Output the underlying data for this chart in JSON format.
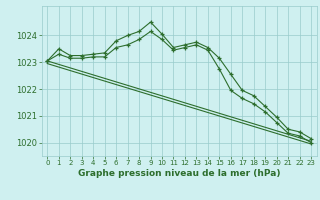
{
  "title": "Graphe pression niveau de la mer (hPa)",
  "bg_color": "#cff0f0",
  "grid_color": "#99cccc",
  "line_color": "#2d6e2d",
  "xlim": [
    -0.5,
    23.5
  ],
  "ylim": [
    1019.5,
    1025.1
  ],
  "yticks": [
    1020,
    1021,
    1022,
    1023,
    1024
  ],
  "xticks": [
    0,
    1,
    2,
    3,
    4,
    5,
    6,
    7,
    8,
    9,
    10,
    11,
    12,
    13,
    14,
    15,
    16,
    17,
    18,
    19,
    20,
    21,
    22,
    23
  ],
  "series": [
    {
      "x": [
        0,
        1,
        2,
        3,
        4,
        5,
        6,
        7,
        8,
        9,
        10,
        11,
        12,
        13,
        14,
        15,
        16,
        17,
        18,
        19,
        20,
        21,
        22,
        23
      ],
      "y": [
        1023.05,
        1023.5,
        1023.25,
        1023.25,
        1023.3,
        1023.35,
        1023.8,
        1024.0,
        1024.15,
        1024.5,
        1024.05,
        1023.55,
        1023.65,
        1023.75,
        1023.55,
        1023.15,
        1022.55,
        1021.95,
        1021.75,
        1021.35,
        1020.95,
        1020.5,
        1020.4,
        1020.15
      ],
      "marker": true
    },
    {
      "x": [
        0,
        1,
        2,
        3,
        4,
        5,
        6,
        7,
        8,
        9,
        10,
        11,
        12,
        13,
        14,
        15,
        16,
        17,
        18,
        19,
        20,
        21,
        22,
        23
      ],
      "y": [
        1023.05,
        1023.3,
        1023.15,
        1023.15,
        1023.2,
        1023.2,
        1023.55,
        1023.65,
        1023.85,
        1024.15,
        1023.85,
        1023.45,
        1023.55,
        1023.65,
        1023.45,
        1022.75,
        1021.95,
        1021.65,
        1021.45,
        1021.15,
        1020.75,
        1020.35,
        1020.25,
        1020.0
      ],
      "marker": true
    },
    {
      "x": [
        0,
        23
      ],
      "y": [
        1023.05,
        1020.05
      ],
      "marker": false
    },
    {
      "x": [
        0,
        23
      ],
      "y": [
        1022.95,
        1019.95
      ],
      "marker": false
    }
  ]
}
